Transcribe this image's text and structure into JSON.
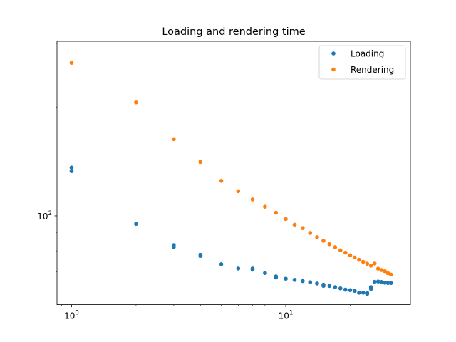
{
  "chart_data": {
    "type": "scatter",
    "title": "Loading and rendering time",
    "xlabel": "",
    "ylabel": "",
    "xscale": "log",
    "yscale": "log",
    "xlim": [
      0.855,
      38.2
    ],
    "ylim": [
      56.8,
      304
    ],
    "grid": false,
    "legend_position": "top-right",
    "x_ticks": [
      {
        "value": 1,
        "base": "10",
        "exp": "0"
      },
      {
        "value": 10,
        "base": "10",
        "exp": "1"
      }
    ],
    "y_ticks": [
      {
        "value": 100,
        "base": "10",
        "exp": "2"
      }
    ],
    "series": [
      {
        "name": "Loading",
        "color": "#1f77b4",
        "x": [
          1,
          1,
          2,
          3,
          3,
          4,
          4,
          5,
          6,
          7,
          7,
          8,
          9,
          9,
          10,
          11,
          12,
          13,
          14,
          15,
          15,
          16,
          17,
          18,
          19,
          19,
          20,
          21,
          22,
          23,
          24,
          24,
          25,
          25,
          26,
          27,
          28,
          29,
          30,
          31
        ],
        "y": [
          136,
          133,
          95,
          83,
          82,
          78,
          77.5,
          73.5,
          71.5,
          71.5,
          71,
          69.5,
          68,
          67.5,
          67,
          66.5,
          66,
          65.5,
          65,
          64.5,
          64,
          64,
          63.5,
          63,
          62.5,
          62.5,
          62.3,
          62,
          61.3,
          61.3,
          61.2,
          60.8,
          62.8,
          63.5,
          65.7,
          65.8,
          65.6,
          65.3,
          65.2,
          65.2
        ]
      },
      {
        "name": "Rendering",
        "color": "#ff7f0e",
        "x": [
          1,
          2,
          3,
          4,
          5,
          6,
          7,
          8,
          9,
          10,
          11,
          12,
          13,
          14,
          15,
          16,
          17,
          18,
          19,
          20,
          21,
          22,
          23,
          24,
          25,
          26,
          27,
          28,
          29,
          30,
          31
        ],
        "y": [
          265,
          206,
          163,
          141,
          125,
          117,
          111,
          106,
          102,
          98,
          94.5,
          92.5,
          89.7,
          87.3,
          85.3,
          83.5,
          81.9,
          80.3,
          79.1,
          77.8,
          76.7,
          75.6,
          74.6,
          73.7,
          72.8,
          73.8,
          71.4,
          70.8,
          70.3,
          69.4,
          68.8
        ]
      }
    ]
  }
}
